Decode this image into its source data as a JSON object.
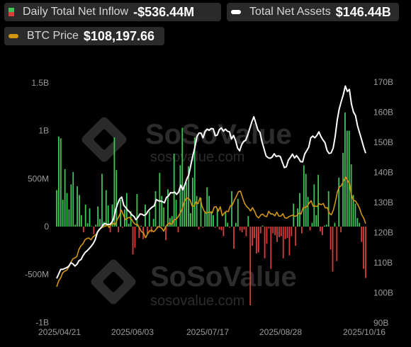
{
  "legend": {
    "inflow": {
      "label": "Daily Total Net Inflow",
      "value": "-$536.44M",
      "color_pos": "#3fc45a",
      "color_neg": "#d83c3c"
    },
    "assets": {
      "label": "Total Net Assets",
      "value": "$146.44B",
      "color": "#ffffff"
    },
    "btc": {
      "label": "BTC Price",
      "value": "$108,197.66",
      "color": "#d4960f"
    }
  },
  "watermark": {
    "brand": "SoSoValue",
    "url": "sosovalue.com"
  },
  "chart_data": {
    "type": "bar",
    "x_tick_labels": [
      "2025/04/21",
      "2025/06/03",
      "2025/07/17",
      "2025/08/28",
      "2025/10/16"
    ],
    "y_left": {
      "ticks": [
        "1.5B",
        "1B",
        "500M",
        "0",
        "-500M",
        "-1B"
      ],
      "ylim": [
        -1000,
        1500
      ],
      "unit": "M USD"
    },
    "y_right": {
      "ticks": [
        "170B",
        "160B",
        "150B",
        "140B",
        "130B",
        "120B",
        "110B",
        "100B",
        "90B"
      ],
      "ylim": [
        90,
        170
      ],
      "unit": "B USD"
    },
    "grid": false,
    "legend_position": "top",
    "series": [
      {
        "name": "Daily Total Net Inflow",
        "kind": "bar",
        "values": [
          380,
          940,
          920,
          280,
          600,
          350,
          180,
          440,
          570,
          20,
          420,
          330,
          120,
          -60,
          230,
          35,
          190,
          5,
          -80,
          20,
          210,
          80,
          550,
          50,
          380,
          220,
          -60,
          230,
          930,
          590,
          -60,
          280,
          -10,
          180,
          350,
          30,
          160,
          -290,
          -220,
          340,
          -120,
          10,
          -130,
          230,
          -80,
          160,
          -60,
          80,
          370,
          -20,
          560,
          320,
          200,
          -140,
          390,
          90,
          110,
          760,
          280,
          -60,
          640,
          1030,
          420,
          460,
          630,
          140,
          510,
          930,
          320,
          -30,
          300,
          -10,
          160,
          410,
          320,
          160,
          120,
          -10,
          190,
          -30,
          -40,
          -100,
          150,
          40,
          -10,
          370,
          -230,
          40,
          290,
          -40,
          -60,
          -30,
          -100,
          110,
          -820,
          -200,
          -120,
          -280,
          -270,
          -70,
          10,
          -330,
          -180,
          -20,
          -440,
          -70,
          -90,
          -160,
          -110,
          -100,
          -330,
          -130,
          -120,
          -300,
          -100,
          240,
          -200,
          190,
          350,
          -70,
          640,
          550,
          310,
          -40,
          40,
          440,
          120,
          540,
          -50,
          -90,
          10,
          20,
          370,
          -240,
          -470,
          40,
          -360,
          510,
          -60,
          770,
          1190,
          1000,
          1000,
          650,
          330,
          240,
          90,
          40,
          -160,
          -440,
          -536
        ],
        "color_positive": "#3fc45a",
        "color_negative": "#d83c3c"
      },
      {
        "name": "Total Net Assets",
        "kind": "line",
        "axis": "right",
        "color": "#ffffff",
        "values": [
          104.8,
          106.3,
          107.8,
          107.8,
          108.1,
          108.4,
          108.9,
          110.0,
          109.6,
          108.9,
          109.5,
          110.7,
          111.1,
          112.4,
          113.4,
          114.0,
          114.7,
          115.5,
          116.4,
          117.7,
          120.1,
          121.1,
          121.7,
          122.8,
          123.0,
          122.7,
          122.7,
          123.3,
          124.6,
          127.6,
          129.6,
          131.2,
          131.8,
          129.1,
          128.3,
          127.4,
          126.8,
          125.9,
          125.4,
          124.3,
          125.1,
          126.2,
          126.1,
          125.7,
          126.1,
          127.2,
          127.9,
          128.5,
          128.9,
          131.0,
          130.6,
          130.5,
          130.3,
          129.9,
          131.7,
          132.2,
          133.3,
          133.2,
          133.5,
          132.7,
          133.5,
          135.8,
          134.2,
          135.8,
          137.8,
          139.2,
          142.5,
          145.6,
          148.4,
          151.9,
          153.1,
          153.1,
          151.5,
          153.6,
          154.4,
          154.0,
          154.6,
          154.5,
          152.2,
          152.4,
          154.2,
          154.8,
          153.7,
          154.4,
          153.7,
          153.5,
          151.1,
          152.3,
          150.6,
          148.1,
          147.2,
          149.2,
          150.3,
          150.7,
          152.5,
          154.6,
          156.8,
          158.5,
          156.3,
          154.1,
          153.3,
          150.2,
          147.9,
          145.5,
          144.9,
          144.7,
          145.1,
          146.2,
          145.3,
          145.5,
          145.3,
          143.4,
          141.6,
          141.9,
          144.1,
          145.0,
          146.1,
          144.8,
          145.6,
          144.7,
          143.6,
          143.5,
          146.1,
          147.2,
          148.4,
          151.5,
          152.1,
          151.5,
          152.3,
          153.5,
          151.9,
          150.8,
          149.9,
          147.3,
          146.3,
          146.5,
          148.0,
          151.9,
          157.3,
          161.1,
          163.6,
          165.8,
          168.7,
          166.9,
          167.6,
          162.8,
          160.1,
          158.9,
          155.5,
          153.2,
          150.9,
          148.5,
          146.4
        ]
      },
      {
        "name": "BTC Price",
        "kind": "line",
        "axis": "right",
        "color": "#d4960f",
        "values": [
          102.0,
          104.0,
          105.0,
          106.7,
          107.2,
          107.5,
          108.6,
          110.1,
          111.3,
          111.6,
          112.1,
          114.4,
          115.6,
          116.3,
          117.6,
          118.1,
          118.2,
          117.6,
          118.6,
          119.1,
          119.8,
          120.8,
          121.6,
          121.9,
          122.2,
          122.7,
          121.7,
          122.8,
          123.0,
          122.7,
          124.4,
          125.6,
          127.5,
          125.9,
          124.3,
          124.8,
          125.1,
          124.5,
          123.4,
          122.7,
          122.7,
          121.6,
          120.3,
          119.9,
          118.3,
          119.6,
          120.6,
          120.8,
          120.3,
          120.9,
          122.0,
          121.9,
          121.5,
          120.5,
          122.0,
          122.9,
          123.2,
          122.7,
          124.2,
          124.4,
          125.1,
          126.3,
          127.6,
          130.0,
          131.3,
          131.5,
          130.9,
          128.9,
          128.8,
          130.2,
          129.6,
          131.6,
          128.7,
          127.2,
          126.5,
          126.7,
          126.8,
          126.5,
          128.5,
          128.6,
          127.1,
          128.6,
          125.6,
          126.5,
          127.1,
          127.0,
          128.9,
          129.2,
          130.8,
          132.1,
          133.6,
          133.8,
          131.7,
          129.8,
          128.7,
          128.1,
          127.2,
          128.3,
          127.1,
          125.5,
          124.9,
          125.8,
          126.2,
          125.5,
          125.3,
          127.1,
          126.2,
          126.2,
          125.6,
          126.8,
          125.5,
          125.5,
          126.3,
          124.9,
          124.8,
          125.3,
          125.6,
          125.8,
          125.4,
          125.7,
          126.5,
          126.2,
          128.2,
          128.4,
          128.7,
          129.8,
          130.6,
          128.8,
          128.8,
          128.7,
          129.6,
          129.3,
          129.7,
          128.2,
          128.3,
          126.5,
          125.9,
          127.5,
          130.2,
          133.5,
          135.2,
          135.6,
          137.1,
          138.5,
          137.3,
          136.3,
          132.3,
          130.7,
          130.5,
          129.4,
          128.1,
          126.0,
          124.9,
          123.0
        ]
      }
    ]
  }
}
